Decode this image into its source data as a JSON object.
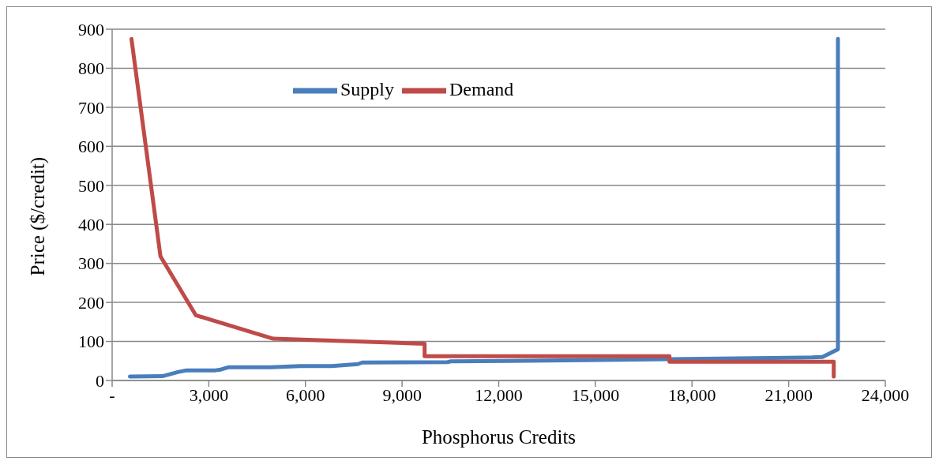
{
  "chart_data": {
    "type": "line",
    "xlabel": "Phosphorus Credits",
    "ylabel": "Price ($/credit)",
    "xlim": [
      0,
      24000
    ],
    "xticks": [
      {
        "value": 0,
        "label": "-"
      },
      {
        "value": 3000,
        "label": "3,000"
      },
      {
        "value": 6000,
        "label": "6,000"
      },
      {
        "value": 9000,
        "label": "9,000"
      },
      {
        "value": 12000,
        "label": "12,000"
      },
      {
        "value": 15000,
        "label": "15,000"
      },
      {
        "value": 18000,
        "label": "18,000"
      },
      {
        "value": 21000,
        "label": "21,000"
      },
      {
        "value": 24000,
        "label": "24,000"
      }
    ],
    "ylim": [
      0,
      900
    ],
    "yticks": [
      0,
      100,
      200,
      300,
      400,
      500,
      600,
      700,
      800,
      900
    ],
    "grid": "y",
    "legend": "top",
    "marker": "none",
    "line_style": "solid",
    "series": [
      {
        "name": "Supply",
        "color": "#4a7ebb",
        "x": [
          550,
          1560,
          2060,
          2310,
          3210,
          3370,
          3620,
          4930,
          5830,
          6810,
          7630,
          7760,
          10420,
          10500,
          12300,
          21720,
          22050,
          22530,
          22530
        ],
        "values": [
          10,
          11,
          22,
          26,
          26,
          28,
          34,
          34,
          37,
          37,
          42,
          46,
          47,
          49,
          50,
          59,
          60,
          80,
          875
        ]
      },
      {
        "name": "Demand",
        "color": "#be4b48",
        "x": [
          600,
          1500,
          2600,
          5000,
          9700,
          9700,
          17300,
          17300,
          22400,
          22400
        ],
        "values": [
          875,
          318,
          167,
          107,
          94,
          62,
          62,
          48,
          48,
          10
        ]
      }
    ]
  }
}
